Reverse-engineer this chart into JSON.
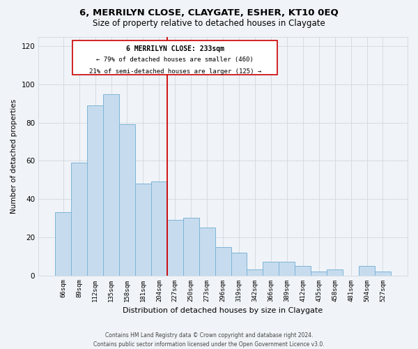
{
  "title": "6, MERRILYN CLOSE, CLAYGATE, ESHER, KT10 0EQ",
  "subtitle": "Size of property relative to detached houses in Claygate",
  "xlabel": "Distribution of detached houses by size in Claygate",
  "ylabel": "Number of detached properties",
  "bar_color": "#c6dcee",
  "bar_edge_color": "#7fb3d6",
  "background_color": "#f0f4f8",
  "grid_color": "#d0d8e0",
  "categories": [
    "66sqm",
    "89sqm",
    "112sqm",
    "135sqm",
    "158sqm",
    "181sqm",
    "204sqm",
    "227sqm",
    "250sqm",
    "273sqm",
    "296sqm",
    "319sqm",
    "342sqm",
    "366sqm",
    "389sqm",
    "412sqm",
    "435sqm",
    "458sqm",
    "481sqm",
    "504sqm",
    "527sqm"
  ],
  "values": [
    33,
    59,
    89,
    95,
    79,
    48,
    49,
    29,
    30,
    25,
    15,
    12,
    3,
    7,
    7,
    5,
    2,
    3,
    0,
    5,
    2
  ],
  "ylim": [
    0,
    125
  ],
  "yticks": [
    0,
    20,
    40,
    60,
    80,
    100,
    120
  ],
  "property_line_color": "#cc0000",
  "annotation_line1": "6 MERRILYN CLOSE: 233sqm",
  "annotation_line2": "← 79% of detached houses are smaller (460)",
  "annotation_line3": "21% of semi-detached houses are larger (125) →",
  "footer_line1": "Contains HM Land Registry data © Crown copyright and database right 2024.",
  "footer_line2": "Contains public sector information licensed under the Open Government Licence v3.0."
}
